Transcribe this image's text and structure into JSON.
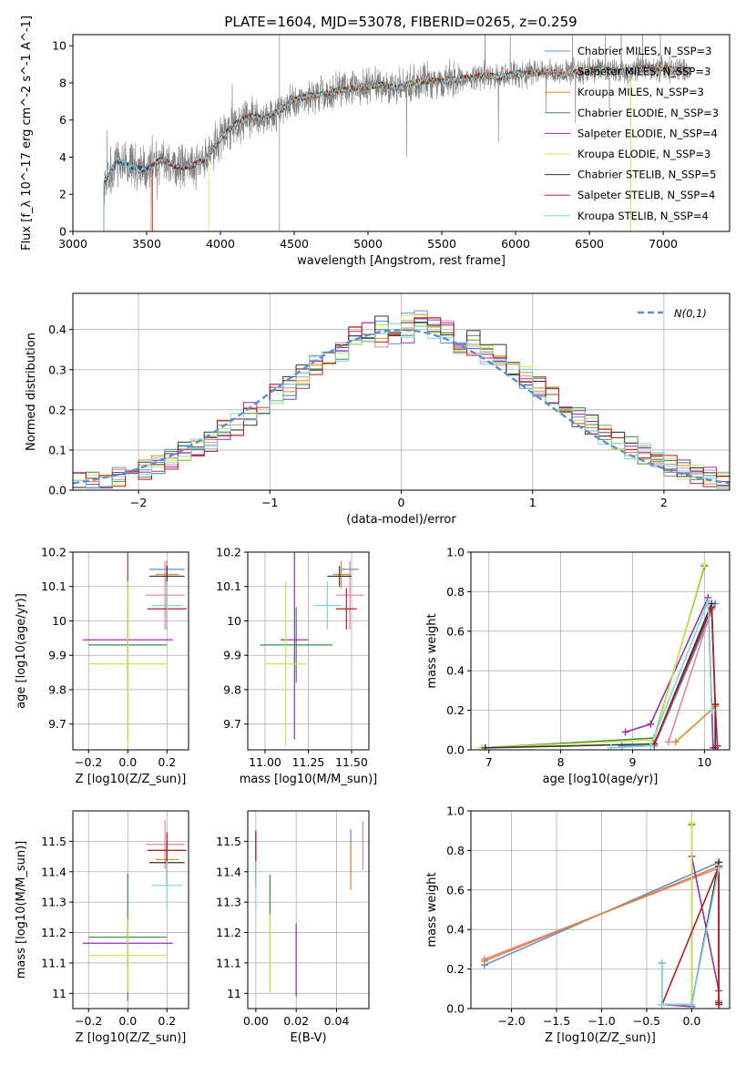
{
  "figure": {
    "title": "PLATE=1604, MJD=53078, FIBERID=0265, z=0.259"
  },
  "series_styles": [
    {
      "name": "Chabrier MILES, N_SSP=3",
      "color": "#5f8fd6"
    },
    {
      "name": "Salpeter MILES, N_SSP=3",
      "color": "#e8849c"
    },
    {
      "name": "Kroupa MILES, N_SSP=3",
      "color": "#d98a2c"
    },
    {
      "name": "Chabrier ELODIE, N_SSP=3",
      "color": "#3f8c4a"
    },
    {
      "name": "Salpeter ELODIE, N_SSP=4",
      "color": "#9a2fb0"
    },
    {
      "name": "Kroupa ELODIE, N_SSP=3",
      "color": "#cde84a"
    },
    {
      "name": "Chabrier STELIB, N_SSP=5",
      "color": "#333333"
    },
    {
      "name": "Salpeter STELIB, N_SSP=4",
      "color": "#b51e1e"
    },
    {
      "name": "Kroupa STELIB, N_SSP=4",
      "color": "#7fd6d6"
    }
  ],
  "chart_data": [
    {
      "id": "spectrum",
      "type": "line",
      "xlabel": "wavelength [Angstrom, rest frame]",
      "ylabel": "Flux [f_λ 10^-17 erg cm^-2 s^-1 A^-1]",
      "xlim": [
        3000,
        7450
      ],
      "ylim": [
        0,
        10.6
      ],
      "xticks": [
        3000,
        3500,
        4000,
        4500,
        5000,
        5500,
        6000,
        6500,
        7000
      ],
      "yticks": [
        0,
        2,
        4,
        6,
        8,
        10
      ],
      "legend_position": "right",
      "legend": [
        "Chabrier MILES, N_SSP=3",
        "Salpeter MILES, N_SSP=3",
        "Kroupa MILES, N_SSP=3",
        "Chabrier ELODIE, N_SSP=3",
        "Salpeter ELODIE, N_SSP=4",
        "Kroupa ELODIE, N_SSP=3",
        "Chabrier STELIB, N_SSP=5",
        "Salpeter STELIB, N_SSP=4",
        "Kroupa STELIB, N_SSP=4"
      ],
      "data_series": {
        "name": "data",
        "color": "#808080",
        "x_range": [
          3210,
          7180
        ]
      },
      "model_x": [
        3210,
        3300,
        3400,
        3500,
        3600,
        3700,
        3800,
        3900,
        4000,
        4100,
        4200,
        4300,
        4400,
        4500,
        4600,
        4700,
        4800,
        4900,
        5000,
        5100,
        5200,
        5300,
        5400,
        5500,
        5600,
        5700,
        5800,
        5900,
        6000,
        6100,
        6200,
        6300,
        6400,
        6500,
        6600,
        6700,
        6800,
        6900,
        7000,
        7100,
        7180
      ],
      "model_y": [
        2.6,
        3.8,
        3.5,
        3.3,
        3.9,
        3.5,
        3.5,
        3.9,
        5.0,
        5.8,
        6.2,
        6.1,
        6.5,
        7.1,
        7.3,
        7.4,
        7.6,
        7.7,
        7.8,
        7.9,
        7.7,
        8.0,
        8.1,
        8.1,
        8.2,
        8.3,
        8.4,
        8.3,
        8.5,
        8.5,
        8.6,
        8.5,
        8.6,
        8.7,
        8.7,
        8.6,
        8.7,
        8.8,
        8.8,
        8.7,
        8.7
      ],
      "model_starts": [
        3210,
        3530,
        3530,
        3210,
        3210,
        3920,
        3210,
        3540,
        3210
      ]
    },
    {
      "id": "residuals",
      "type": "line",
      "xlabel": "(data-model)/error",
      "ylabel": "Normed distribution",
      "xlim": [
        -2.5,
        2.5
      ],
      "ylim": [
        0,
        0.49
      ],
      "xticks": [
        -2,
        -1,
        0,
        1,
        2
      ],
      "yticks": [
        0.0,
        0.1,
        0.2,
        0.3,
        0.4
      ],
      "grid": true,
      "legend": [
        "N(0,1)"
      ],
      "legend_position": "top-right",
      "gaussian_color": "#5b8fd6",
      "hist_bin_width": 0.1
    },
    {
      "id": "z-vs-age",
      "type": "scatter",
      "xlabel": "Z [log10(Z/Z_sun)]",
      "ylabel": "age [log10(age/yr)]",
      "xlim": [
        -0.28,
        0.31
      ],
      "ylim": [
        9.625,
        10.2
      ],
      "xticks": [
        -0.2,
        0.0,
        0.2
      ],
      "xticklabels": [
        "−0.2",
        "0.0",
        "0.2"
      ],
      "yticks": [
        9.7,
        9.8,
        9.9,
        10.0,
        10.1,
        10.2
      ],
      "grid": true,
      "points": [
        {
          "s": 0,
          "x": 0.2,
          "y": 10.15,
          "ex": 0.09,
          "ey": 0.025
        },
        {
          "s": 1,
          "x": 0.19,
          "y": 10.075,
          "ex": 0.1,
          "ey": 0.1
        },
        {
          "s": 2,
          "x": 0.2,
          "y": 10.135,
          "ex": 0.06,
          "ey": 0.04
        },
        {
          "s": 3,
          "x": 0.0,
          "y": 9.93,
          "ex": 0.2,
          "ey": 0.11
        },
        {
          "s": 4,
          "x": 0.0,
          "y": 9.945,
          "ex": 0.23,
          "ey": 0.29
        },
        {
          "s": 5,
          "x": 0.0,
          "y": 9.875,
          "ex": 0.2,
          "ey": 0.24
        },
        {
          "s": 6,
          "x": 0.2,
          "y": 10.13,
          "ex": 0.09,
          "ey": 0.03
        },
        {
          "s": 7,
          "x": 0.2,
          "y": 10.035,
          "ex": 0.1,
          "ey": 0.06
        },
        {
          "s": 8,
          "x": 0.2,
          "y": 10.045,
          "ex": 0.08,
          "ey": 0.07
        }
      ]
    },
    {
      "id": "mass-vs-age",
      "type": "scatter",
      "xlabel": "mass [log10(M/M_sun)]",
      "ylabel": "",
      "xlim": [
        10.9,
        11.6
      ],
      "ylim": [
        9.625,
        10.2
      ],
      "xticks": [
        11.0,
        11.25,
        11.5
      ],
      "xticklabels": [
        "11.00",
        "11.25",
        "11.50"
      ],
      "yticks": [
        9.7,
        9.8,
        9.9,
        10.0,
        10.1,
        10.2
      ],
      "grid": true,
      "points": [
        {
          "s": 0,
          "x": 11.49,
          "y": 10.15,
          "ex": 0.05,
          "ey": 0.025
        },
        {
          "s": 1,
          "x": 11.49,
          "y": 10.075,
          "ex": 0.08,
          "ey": 0.1
        },
        {
          "s": 2,
          "x": 11.44,
          "y": 10.135,
          "ex": 0.05,
          "ey": 0.04
        },
        {
          "s": 3,
          "x": 11.18,
          "y": 9.93,
          "ex": 0.21,
          "ey": 0.11
        },
        {
          "s": 4,
          "x": 11.17,
          "y": 9.945,
          "ex": 0.08,
          "ey": 0.29
        },
        {
          "s": 5,
          "x": 11.12,
          "y": 9.875,
          "ex": 0.12,
          "ey": 0.24
        },
        {
          "s": 6,
          "x": 11.43,
          "y": 10.13,
          "ex": 0.07,
          "ey": 0.03
        },
        {
          "s": 7,
          "x": 11.47,
          "y": 10.035,
          "ex": 0.06,
          "ey": 0.06
        },
        {
          "s": 8,
          "x": 11.36,
          "y": 10.045,
          "ex": 0.08,
          "ey": 0.07
        }
      ]
    },
    {
      "id": "age-vs-weight",
      "type": "line",
      "xlabel": "age [log10(age/yr)]",
      "ylabel": "mass weight",
      "xlim": [
        6.75,
        10.35
      ],
      "ylim": [
        0,
        1
      ],
      "xticks": [
        7,
        8,
        9,
        10
      ],
      "yticks": [
        0.0,
        0.2,
        0.4,
        0.6,
        0.8,
        1.0
      ],
      "grid": true,
      "lines": [
        {
          "s": 0,
          "x": [
            8.85,
            9.3,
            10.15
          ],
          "y": [
            0.02,
            0.02,
            0.74
          ]
        },
        {
          "s": 1,
          "x": [
            9.5,
            10.1,
            10.15
          ],
          "y": [
            0.04,
            0.71,
            0.23
          ]
        },
        {
          "s": 2,
          "x": [
            9.6,
            10.15
          ],
          "y": [
            0.04,
            0.22
          ]
        },
        {
          "s": 3,
          "x": [
            6.9,
            9.3,
            10.0
          ],
          "y": [
            0.01,
            0.06,
            0.93
          ]
        },
        {
          "s": 4,
          "x": [
            8.9,
            9.25,
            10.05,
            10.12
          ],
          "y": [
            0.09,
            0.13,
            0.77,
            0.01
          ]
        },
        {
          "s": 5,
          "x": [
            6.9,
            9.3,
            10.0
          ],
          "y": [
            0.01,
            0.05,
            0.94
          ]
        },
        {
          "s": 6,
          "x": [
            6.95,
            9.3,
            10.1,
            10.15,
            10.15
          ],
          "y": [
            0.01,
            0.03,
            0.74,
            0.23,
            0.01
          ]
        },
        {
          "s": 7,
          "x": [
            9.3,
            10.1,
            10.15,
            10.18
          ],
          "y": [
            0.03,
            0.72,
            0.23,
            0.02
          ]
        },
        {
          "s": 8,
          "x": [
            8.7,
            9.25,
            10.05,
            10.1
          ],
          "y": [
            0.01,
            0.02,
            0.75,
            0.2
          ]
        }
      ]
    },
    {
      "id": "z-vs-mass",
      "type": "scatter",
      "xlabel": "Z [log10(Z/Z_sun)]",
      "ylabel": "mass [log10(M/M_sun)]",
      "xlim": [
        -0.28,
        0.31
      ],
      "ylim": [
        10.95,
        11.6
      ],
      "xticks": [
        -0.2,
        0.0,
        0.2
      ],
      "xticklabels": [
        "−0.2",
        "0.0",
        "0.2"
      ],
      "yticks": [
        11.0,
        11.1,
        11.2,
        11.3,
        11.4,
        11.5
      ],
      "grid": true,
      "points": [
        {
          "s": 0,
          "x": 0.2,
          "y": 11.47,
          "ex": 0.09,
          "ey": 0.05
        },
        {
          "s": 1,
          "x": 0.19,
          "y": 11.49,
          "ex": 0.1,
          "ey": 0.08
        },
        {
          "s": 2,
          "x": 0.2,
          "y": 11.44,
          "ex": 0.06,
          "ey": 0.05
        },
        {
          "s": 3,
          "x": 0.0,
          "y": 11.185,
          "ex": 0.2,
          "ey": 0.21
        },
        {
          "s": 4,
          "x": 0.0,
          "y": 11.165,
          "ex": 0.23,
          "ey": 0.08
        },
        {
          "s": 5,
          "x": 0.0,
          "y": 11.125,
          "ex": 0.2,
          "ey": 0.12
        },
        {
          "s": 6,
          "x": 0.2,
          "y": 11.43,
          "ex": 0.09,
          "ey": 0.07
        },
        {
          "s": 7,
          "x": 0.2,
          "y": 11.47,
          "ex": 0.1,
          "ey": 0.06
        },
        {
          "s": 8,
          "x": 0.2,
          "y": 11.355,
          "ex": 0.08,
          "ey": 0.08
        }
      ]
    },
    {
      "id": "ebv-vs-mass",
      "type": "scatter",
      "xlabel": "E(B-V)",
      "ylabel": "",
      "xlim": [
        -0.004,
        0.056
      ],
      "ylim": [
        10.95,
        11.6
      ],
      "xticks": [
        0.0,
        0.02,
        0.04
      ],
      "xticklabels": [
        "0.00",
        "0.02",
        "0.04"
      ],
      "yticks": [
        11.0,
        11.1,
        11.2,
        11.3,
        11.4,
        11.5
      ],
      "grid": true,
      "points": [
        {
          "s": 0,
          "x": 0.047,
          "y": 11.47,
          "ex": 0.0,
          "ey": 0.07
        },
        {
          "s": 1,
          "x": 0.053,
          "y": 11.485,
          "ex": 0.0,
          "ey": 0.08
        },
        {
          "s": 2,
          "x": 0.047,
          "y": 11.415,
          "ex": 0.0,
          "ey": 0.075
        },
        {
          "s": 3,
          "x": 0.007,
          "y": 11.2,
          "ex": 0.0,
          "ey": 0.19
        },
        {
          "s": 4,
          "x": 0.02,
          "y": 11.11,
          "ex": 0.0,
          "ey": 0.12
        },
        {
          "s": 5,
          "x": 0.007,
          "y": 11.13,
          "ex": 0.0,
          "ey": 0.13
        },
        {
          "s": 6,
          "x": 0.0,
          "y": 11.44,
          "ex": 0.0,
          "ey": 0.09
        },
        {
          "s": 7,
          "x": 0.0,
          "y": 11.455,
          "ex": 0.0,
          "ey": 0.08
        },
        {
          "s": 8,
          "x": 0.0,
          "y": 11.355,
          "ex": 0.0,
          "ey": 0.08
        }
      ]
    },
    {
      "id": "z-vs-weight",
      "type": "line",
      "xlabel": "Z [log10(Z/Z_sun)]",
      "ylabel": "mass weight",
      "xlim": [
        -2.45,
        0.42
      ],
      "ylim": [
        0,
        1
      ],
      "xticks": [
        -2.0,
        -1.5,
        -1.0,
        -0.5,
        0.0
      ],
      "xticklabels": [
        "−2.0",
        "−1.5",
        "−1.0",
        "−0.5",
        "0.0"
      ],
      "yticks": [
        0.0,
        0.2,
        0.4,
        0.6,
        0.8,
        1.0
      ],
      "grid": true,
      "lines": [
        {
          "s": 0,
          "x": [
            -2.3,
            0.3,
            0.3
          ],
          "y": [
            0.22,
            0.74,
            0.03
          ]
        },
        {
          "s": 1,
          "x": [
            -2.3,
            0.3,
            0.3
          ],
          "y": [
            0.25,
            0.71,
            0.04
          ]
        },
        {
          "s": 2,
          "x": [
            -2.3,
            0.3,
            0.3
          ],
          "y": [
            0.24,
            0.72,
            0.03
          ]
        },
        {
          "s": 3,
          "x": [
            -0.33,
            0.0,
            0.0
          ],
          "y": [
            0.02,
            0.02,
            0.93
          ]
        },
        {
          "s": 4,
          "x": [
            -0.33,
            0.0,
            0.0,
            0.3
          ],
          "y": [
            0.02,
            0.01,
            0.77,
            0.09
          ]
        },
        {
          "s": 5,
          "x": [
            -0.33,
            0.0,
            0.0
          ],
          "y": [
            0.02,
            0.02,
            0.94
          ]
        },
        {
          "s": 6,
          "x": [
            -0.33,
            -0.33,
            0.0,
            0.3,
            0.3
          ],
          "y": [
            0.23,
            0.02,
            0.02,
            0.74,
            0.03
          ]
        },
        {
          "s": 7,
          "x": [
            -0.33,
            0.3,
            0.3
          ],
          "y": [
            0.02,
            0.72,
            0.02
          ]
        },
        {
          "s": 8,
          "x": [
            -0.33,
            -0.33,
            0.0,
            0.3
          ],
          "y": [
            0.23,
            0.02,
            0.02,
            0.71
          ]
        }
      ]
    }
  ]
}
